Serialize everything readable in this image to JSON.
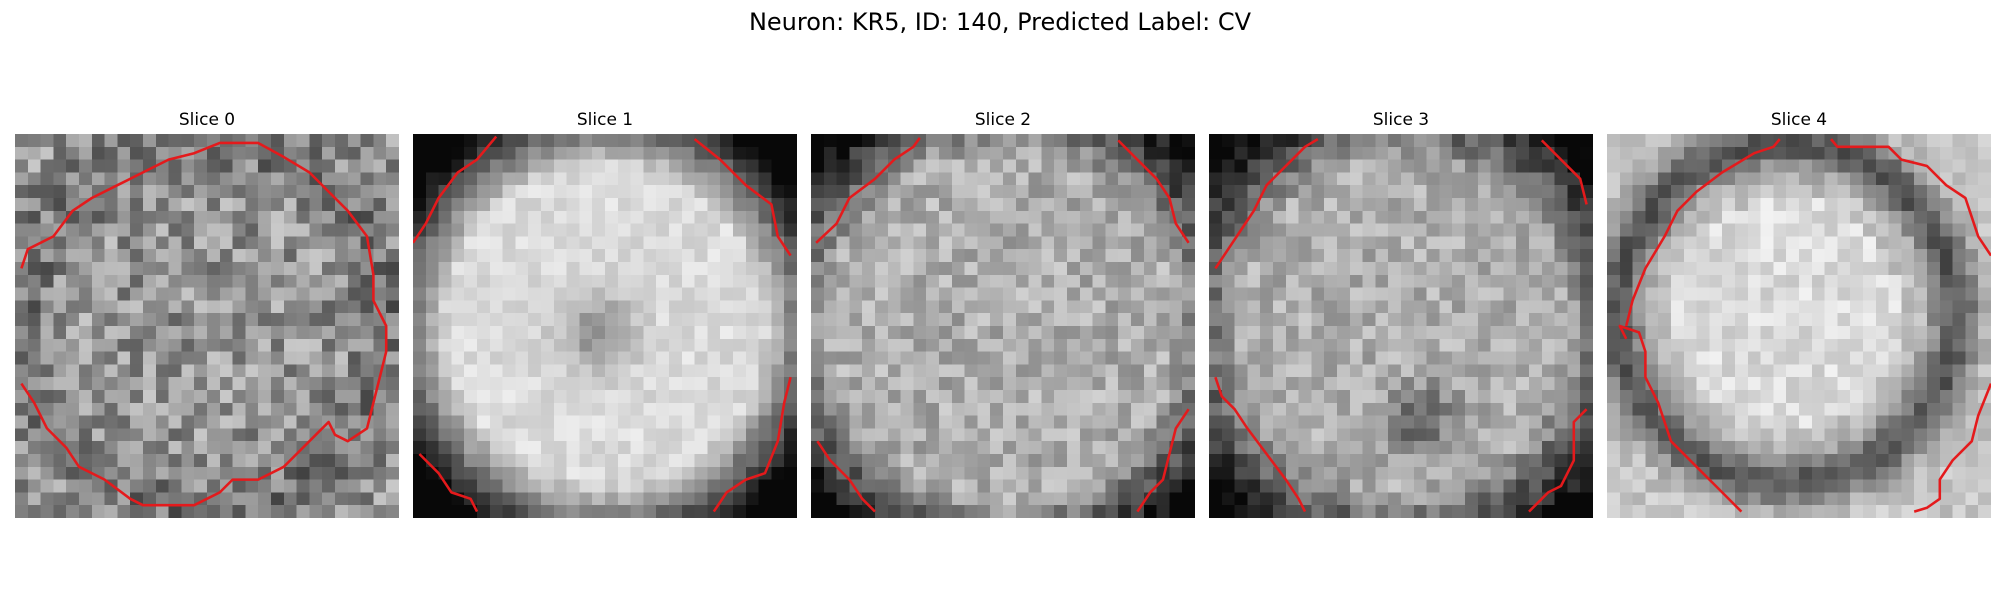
{
  "figure": {
    "title": "Neuron: KR5, ID: 140, Predicted Label: CV"
  },
  "panels": [
    {
      "title": "Slice 0",
      "pattern": "noisy-dark-ring",
      "seed": 11,
      "contour_color": "#e41a1c"
    },
    {
      "title": "Slice 1",
      "pattern": "bright-disc",
      "seed": 23,
      "contour_color": "#e41a1c"
    },
    {
      "title": "Slice 2",
      "pattern": "mid-gray-noise",
      "seed": 37,
      "contour_color": "#e41a1c"
    },
    {
      "title": "Slice 3",
      "pattern": "mid-gray-dark-spot",
      "seed": 41,
      "contour_color": "#e41a1c"
    },
    {
      "title": "Slice 4",
      "pattern": "bright-center-dark-ring",
      "seed": 53,
      "contour_color": "#e41a1c"
    }
  ]
}
